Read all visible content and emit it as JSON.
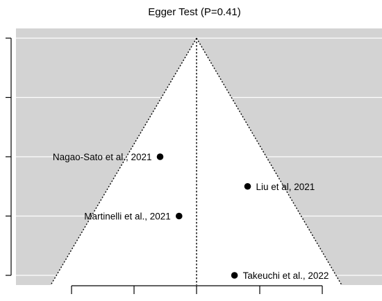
{
  "chart_data": {
    "type": "funnel",
    "title": "Egger Test (P=0.41)",
    "xlabel": "",
    "ylabel": "",
    "xlim": [
      -1.0,
      1.0
    ],
    "ylim": [
      0,
      4
    ],
    "y_reversed": true,
    "x_ticks": [
      -0.85,
      -0.4,
      0.05,
      0.5,
      0.95
    ],
    "y_ticks": [
      0,
      1,
      2,
      3,
      4
    ],
    "show_tick_labels": false,
    "grid": "horizontal",
    "center_line": 0.0,
    "funnel_apex": [
      0.0,
      0
    ],
    "funnel_base": [
      -1.0,
      4.0
    ],
    "studies": [
      {
        "name": "Nagao-Sato et al., 2021",
        "x": -0.25,
        "y": 2.0,
        "label_side": "left"
      },
      {
        "name": "Liu et al, 2021",
        "x": 0.35,
        "y": 2.5,
        "label_side": "right"
      },
      {
        "name": "Martinelli et al., 2021",
        "x": -0.12,
        "y": 3.0,
        "label_side": "left"
      },
      {
        "name": "Takeuchi et al., 2022",
        "x": 0.26,
        "y": 4.0,
        "label_side": "right"
      }
    ]
  },
  "colors": {
    "outside_region": "#d3d3d3",
    "inside_region": "#ffffff",
    "grid": "#ffffff",
    "point": "#000000",
    "axis": "#000000"
  }
}
